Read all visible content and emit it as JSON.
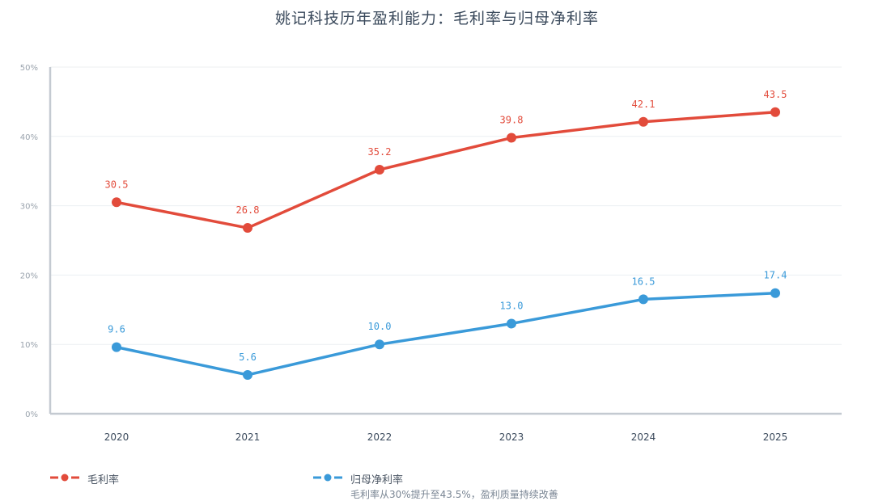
{
  "chart_data": {
    "type": "line",
    "title": "姚记科技历年盈利能力：毛利率与归母净利率",
    "categories": [
      "2020",
      "2021",
      "2022",
      "2023",
      "2024",
      "2025"
    ],
    "ylim": [
      0,
      50
    ],
    "yticks": [
      "0%",
      "10%",
      "20%",
      "30%",
      "40%",
      "50%"
    ],
    "grid": true,
    "legend_position": "bottom-left",
    "series": [
      {
        "name": "毛利率",
        "values": [
          30.5,
          26.8,
          35.2,
          39.8,
          42.1,
          43.5
        ],
        "labels": [
          "30.5",
          "26.8",
          "35.2",
          "39.8",
          "42.1",
          "43.5"
        ],
        "color": "#e24b3b"
      },
      {
        "name": "归母净利率",
        "values": [
          9.6,
          5.6,
          10.0,
          13.0,
          16.5,
          17.4
        ],
        "labels": [
          "9.6",
          "5.6",
          "10.0",
          "13.0",
          "16.5",
          "17.4"
        ],
        "color": "#3a9ad9"
      }
    ],
    "note": "毛利率从30%提升至43.5%，盈利质量持续改善"
  }
}
